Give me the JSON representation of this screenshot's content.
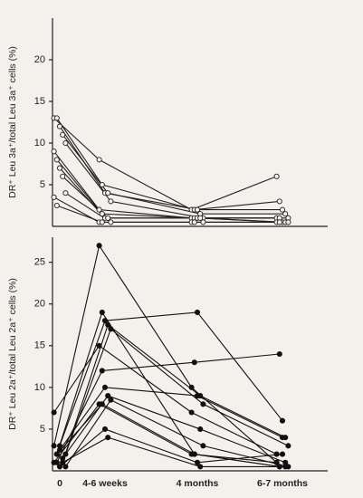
{
  "chart_data": [
    {
      "type": "line",
      "y_label": "DR⁺ Leu 3a⁺/total Leu 3a⁺ cells (%)",
      "categories": [
        null,
        null,
        null,
        null
      ],
      "ylim": [
        0,
        25
      ],
      "yticks": [
        5,
        10,
        15,
        20
      ],
      "marker": "open",
      "color": "#222",
      "series": [
        {
          "values": [
            13,
            8,
            2,
            6
          ]
        },
        {
          "values": [
            13,
            5,
            2,
            3
          ]
        },
        {
          "values": [
            12,
            4,
            2,
            2
          ]
        },
        {
          "values": [
            11,
            4,
            1.5,
            1.5
          ]
        },
        {
          "values": [
            10,
            3,
            1,
            1
          ]
        },
        {
          "values": [
            9,
            2,
            1,
            1
          ]
        },
        {
          "values": [
            8,
            1.5,
            1,
            1
          ]
        },
        {
          "values": [
            7,
            1,
            1,
            0.5
          ]
        },
        {
          "values": [
            6,
            1,
            1,
            0.5
          ]
        },
        {
          "values": [
            4,
            0.5,
            0.5,
            0.5
          ]
        },
        {
          "values": [
            3.5,
            0.5,
            0.5,
            0.5
          ]
        },
        {
          "values": [
            2.5,
            0.5,
            0.5,
            0.5
          ]
        }
      ]
    },
    {
      "type": "line",
      "y_label": "DR⁺ Leu 2a⁺/total Leu 2a⁺ cells (%)",
      "categories": [
        "0",
        "4-6 weeks",
        "4 months",
        "6-7 months"
      ],
      "ylim": [
        0,
        28
      ],
      "yticks": [
        5,
        10,
        15,
        20,
        25
      ],
      "marker": "filled",
      "color": "#111",
      "series": [
        {
          "values": [
            3,
            27,
            10,
            1
          ]
        },
        {
          "values": [
            2,
            19,
            2,
            0.5
          ]
        },
        {
          "values": [
            3,
            18,
            19,
            6
          ]
        },
        {
          "values": [
            1,
            17.5,
            9,
            4
          ]
        },
        {
          "values": [
            2,
            17,
            8,
            3
          ]
        },
        {
          "values": [
            7,
            15,
            7,
            2
          ]
        },
        {
          "values": [
            1,
            12,
            13,
            14
          ]
        },
        {
          "values": [
            2.5,
            10,
            9,
            4
          ]
        },
        {
          "values": [
            1.5,
            9,
            5,
            1
          ]
        },
        {
          "values": [
            0.5,
            8.5,
            3,
            0.5
          ]
        },
        {
          "values": [
            1,
            8,
            2,
            1
          ]
        },
        {
          "values": [
            2,
            8,
            2,
            0.5
          ]
        },
        {
          "values": [
            0.5,
            5,
            1,
            2
          ]
        },
        {
          "values": [
            1,
            4,
            0.5,
            0.5
          ]
        }
      ]
    }
  ]
}
